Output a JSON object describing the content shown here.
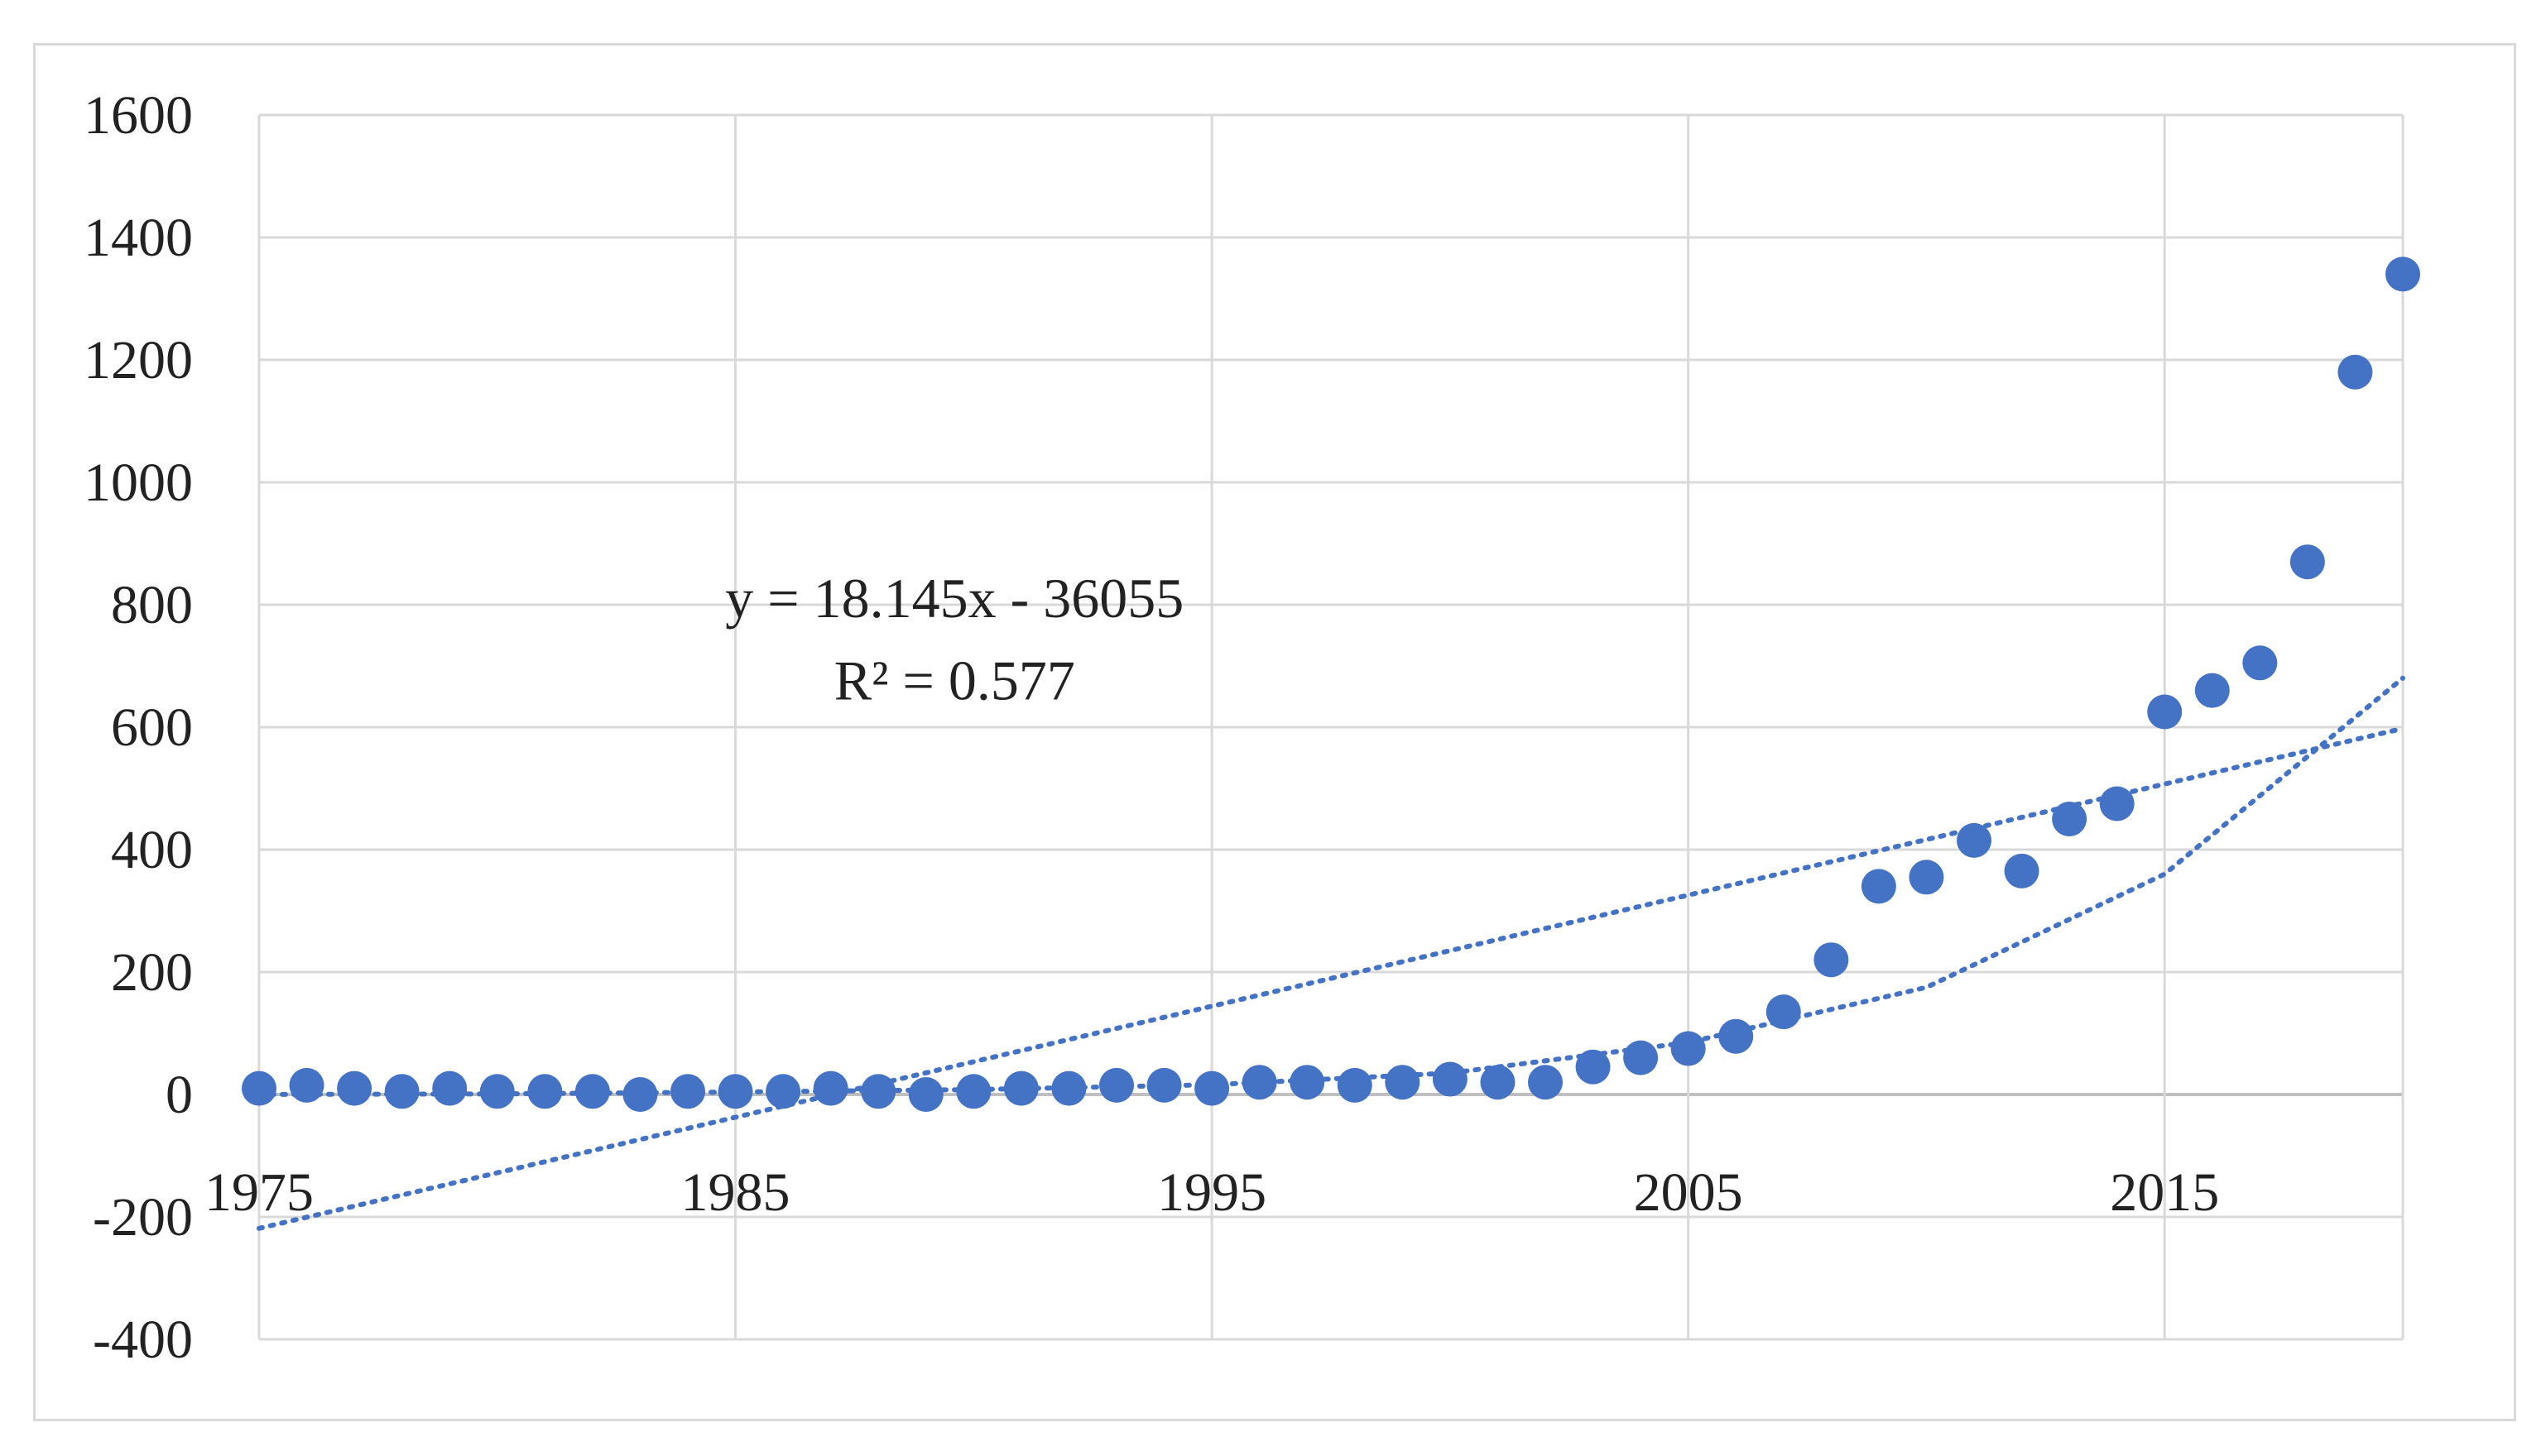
{
  "chart_data": {
    "type": "scatter",
    "title": "",
    "xlabel": "",
    "ylabel": "",
    "xlim": [
      1975,
      2020
    ],
    "ylim": [
      -400,
      1600
    ],
    "x_ticks": [
      "1975",
      "1985",
      "1995",
      "2005",
      "2015"
    ],
    "y_ticks": [
      "1600",
      "1400",
      "1200",
      "1000",
      "800",
      "600",
      "400",
      "200",
      "0",
      "-200",
      "-400"
    ],
    "grid": true,
    "legend": "none",
    "marker_color": "#4472C4",
    "series": [
      {
        "x": [
          1975,
          1976,
          1977,
          1978,
          1979,
          1980,
          1981,
          1982,
          1983,
          1984,
          1985,
          1986,
          1987,
          1988,
          1989,
          1990,
          1991,
          1992,
          1993,
          1994,
          1995,
          1996,
          1997,
          1998,
          1999,
          2000,
          2001,
          2002,
          2003,
          2004,
          2005,
          2006,
          2007,
          2008,
          2009,
          2010,
          2011,
          2012,
          2013,
          2014,
          2015,
          2016,
          2017,
          2018,
          2019,
          2020
        ],
        "y": [
          10,
          15,
          10,
          5,
          10,
          5,
          5,
          5,
          0,
          5,
          5,
          5,
          10,
          5,
          0,
          5,
          10,
          10,
          15,
          15,
          10,
          20,
          20,
          15,
          20,
          25,
          20,
          20,
          45,
          60,
          75,
          95,
          135,
          220,
          340,
          355,
          415,
          365,
          450,
          475,
          625,
          660,
          705,
          870,
          1180,
          1340
        ]
      }
    ],
    "trendlines": [
      {
        "type": "linear",
        "slope": 18.145,
        "intercept": -36055,
        "style": "dotted",
        "color": "#4472C4"
      },
      {
        "type": "exponential",
        "style": "dotted",
        "color": "#4472C4",
        "x": [
          1975,
          1980,
          1985,
          1990,
          1995,
          2000,
          2005,
          2010,
          2015,
          2020
        ],
        "y": [
          0,
          1,
          4,
          8,
          16,
          35,
          85,
          175,
          360,
          680
        ]
      }
    ],
    "annotations": [
      {
        "text": "y = 18.145x - 36055",
        "x": 1989.6,
        "y": 780
      },
      {
        "text": "R² = 0.577",
        "x": 1989.6,
        "y": 645
      }
    ]
  }
}
